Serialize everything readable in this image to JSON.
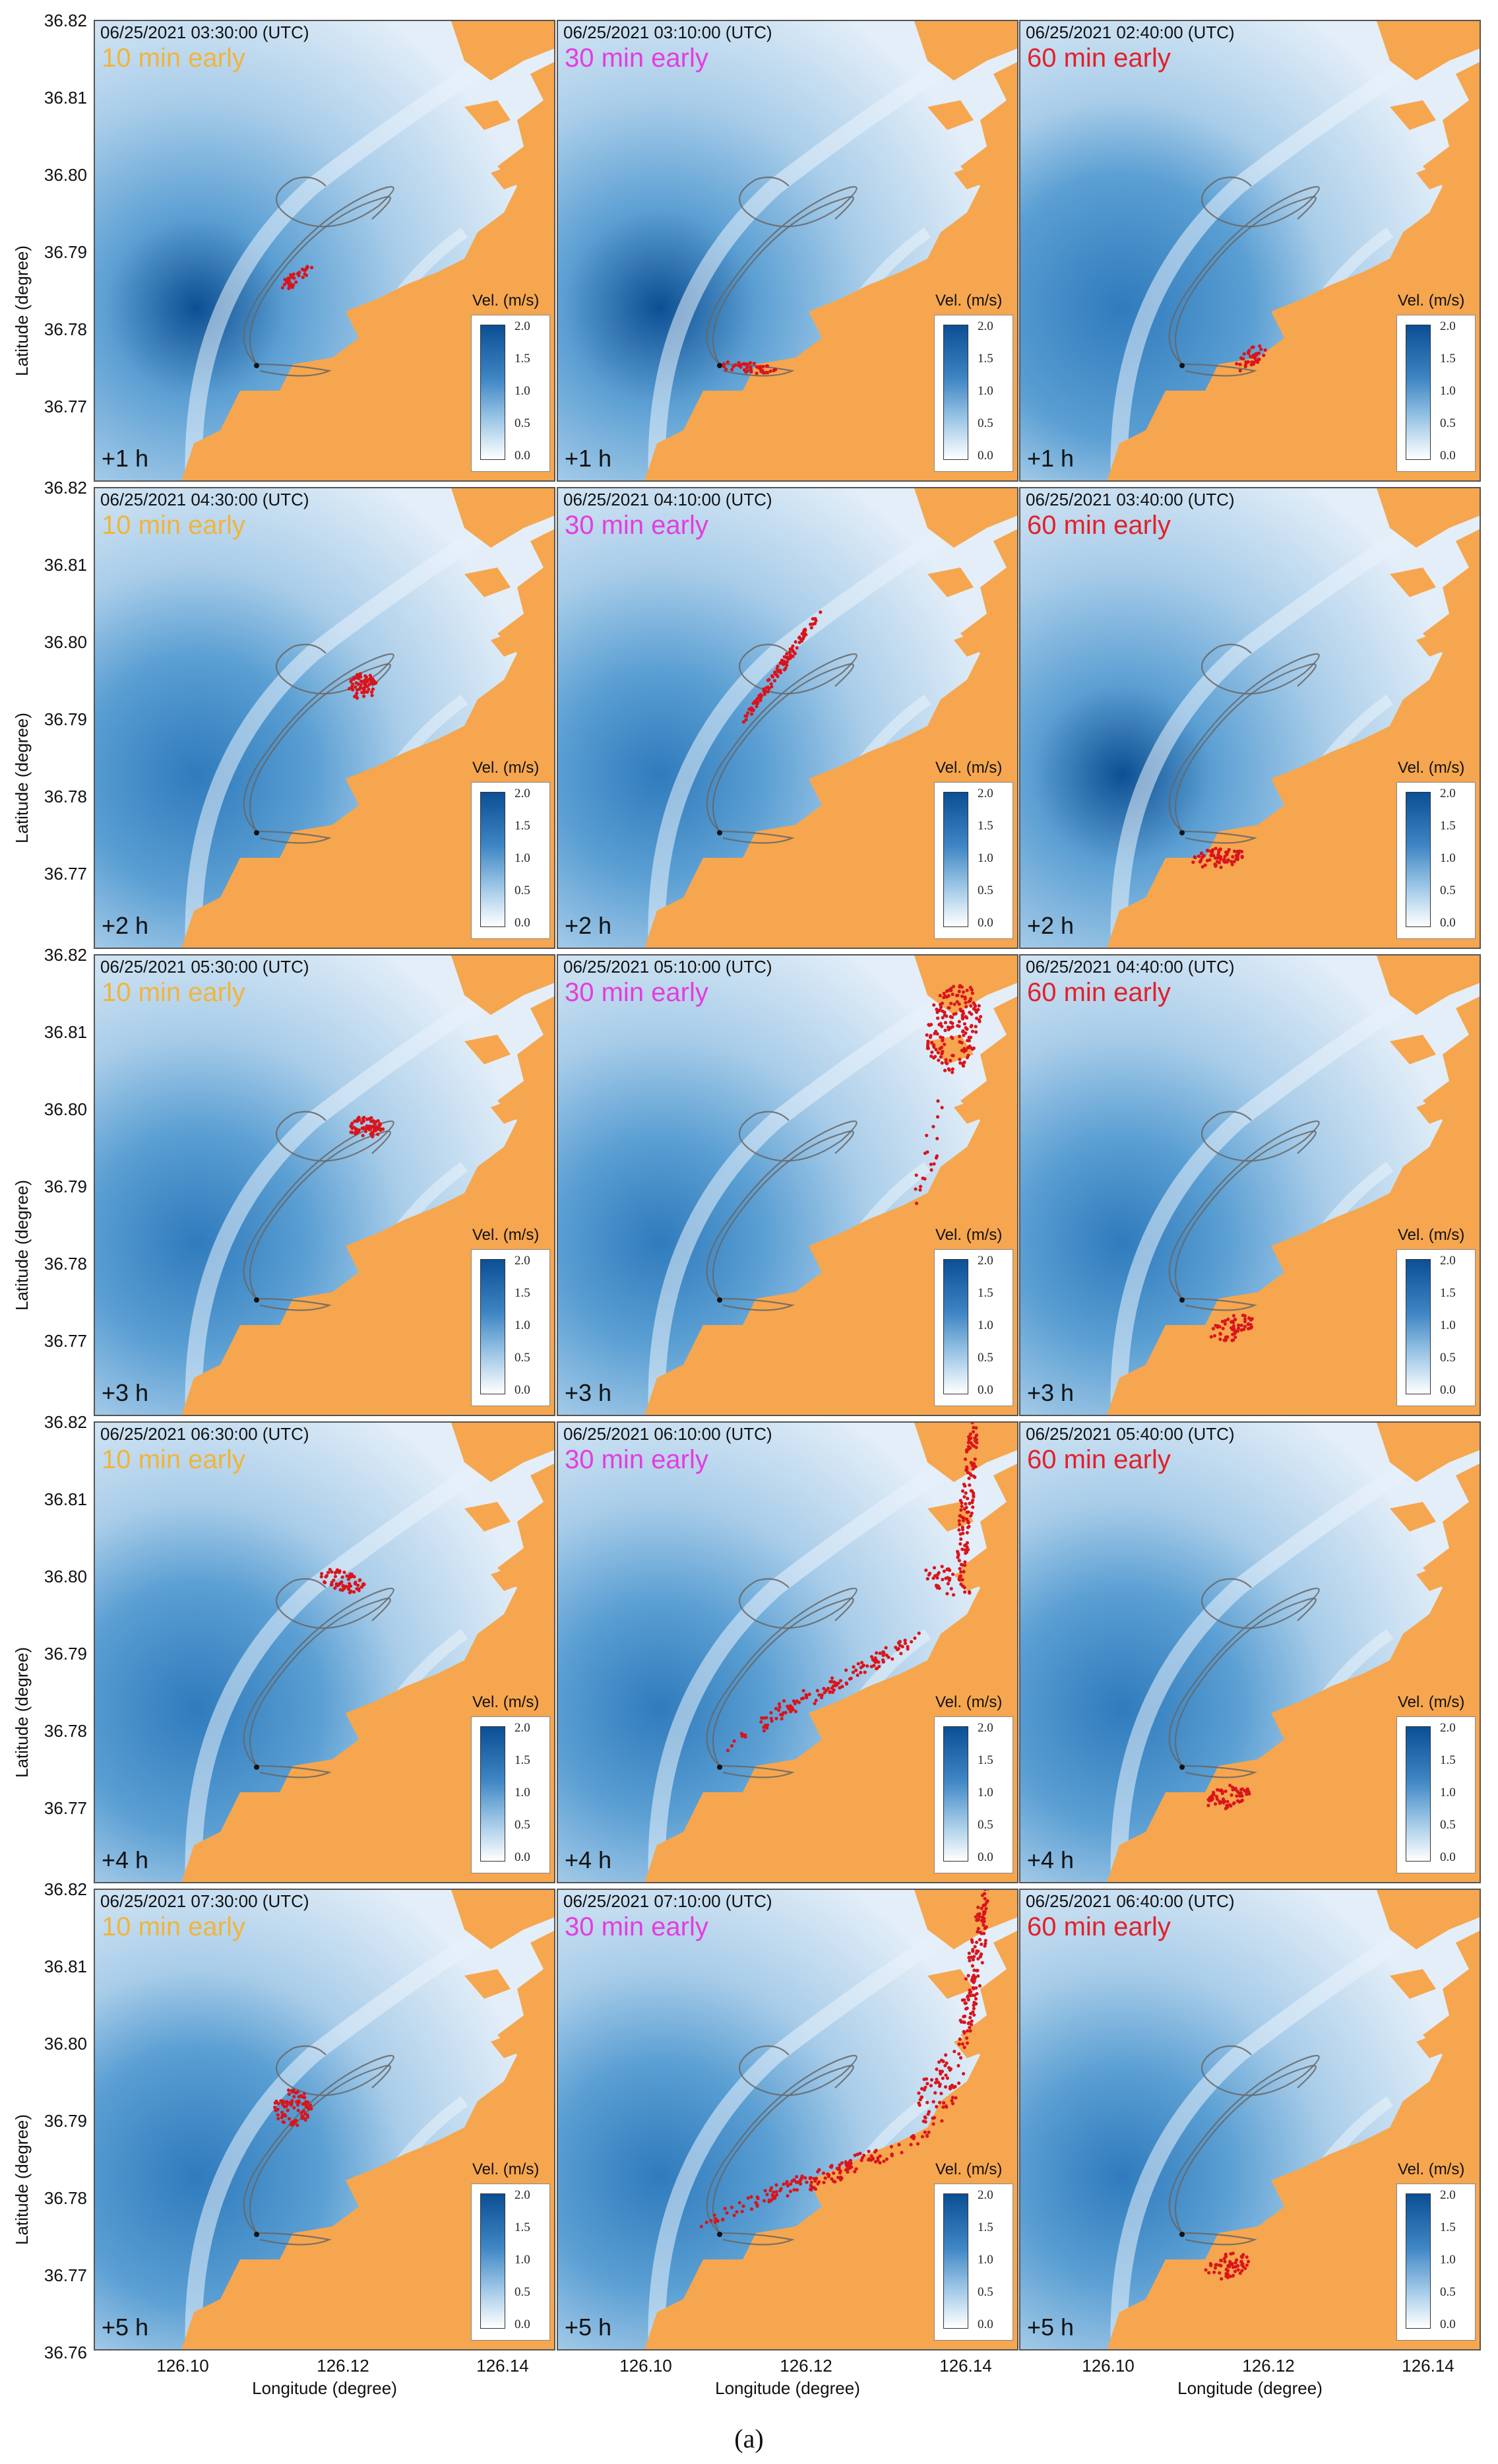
{
  "axis": {
    "ylabel": "Latitude (degree)",
    "xlabel": "Longitude (degree)",
    "yticks": [
      "36.82",
      "36.81",
      "36.80",
      "36.79",
      "36.78",
      "36.77",
      "36.76"
    ],
    "xticks": [
      "126.10",
      "126.12",
      "126.14"
    ]
  },
  "colorbar": {
    "title": "Vel. (m/s)",
    "ticks": [
      "2.0",
      "1.5",
      "1.0",
      "0.5",
      "0.0"
    ],
    "range": [
      0,
      2.0
    ]
  },
  "columns": [
    {
      "label": "10 min early",
      "color": "#f2b43a"
    },
    {
      "label": "30 min early",
      "color": "#e53ce0"
    },
    {
      "label": "60 min early",
      "color": "#e3202a"
    }
  ],
  "rows": [
    {
      "hour": "+1 h",
      "timestamps": [
        "06/25/2021 03:30:00 (UTC)",
        "06/25/2021 03:10:00 (UTC)",
        "06/25/2021 02:40:00 (UTC)"
      ]
    },
    {
      "hour": "+2 h",
      "timestamps": [
        "06/25/2021 04:30:00 (UTC)",
        "06/25/2021 04:10:00 (UTC)",
        "06/25/2021 03:40:00 (UTC)"
      ]
    },
    {
      "hour": "+3 h",
      "timestamps": [
        "06/25/2021 05:30:00 (UTC)",
        "06/25/2021 05:10:00 (UTC)",
        "06/25/2021 04:40:00 (UTC)"
      ]
    },
    {
      "hour": "+4 h",
      "timestamps": [
        "06/25/2021 06:30:00 (UTC)",
        "06/25/2021 06:10:00 (UTC)",
        "06/25/2021 05:40:00 (UTC)"
      ]
    },
    {
      "hour": "+5 h",
      "timestamps": [
        "06/25/2021 07:30:00 (UTC)",
        "06/25/2021 07:10:00 (UTC)",
        "06/25/2021 06:40:00 (UTC)"
      ]
    }
  ],
  "colors": {
    "land": "#f6a64e",
    "water_light": "#e3eef8",
    "water_mid": "#a9cde9",
    "water_dark": "#2f7bbd",
    "particles": "#d9141c",
    "track": "#666666"
  },
  "caption": "(a)"
}
